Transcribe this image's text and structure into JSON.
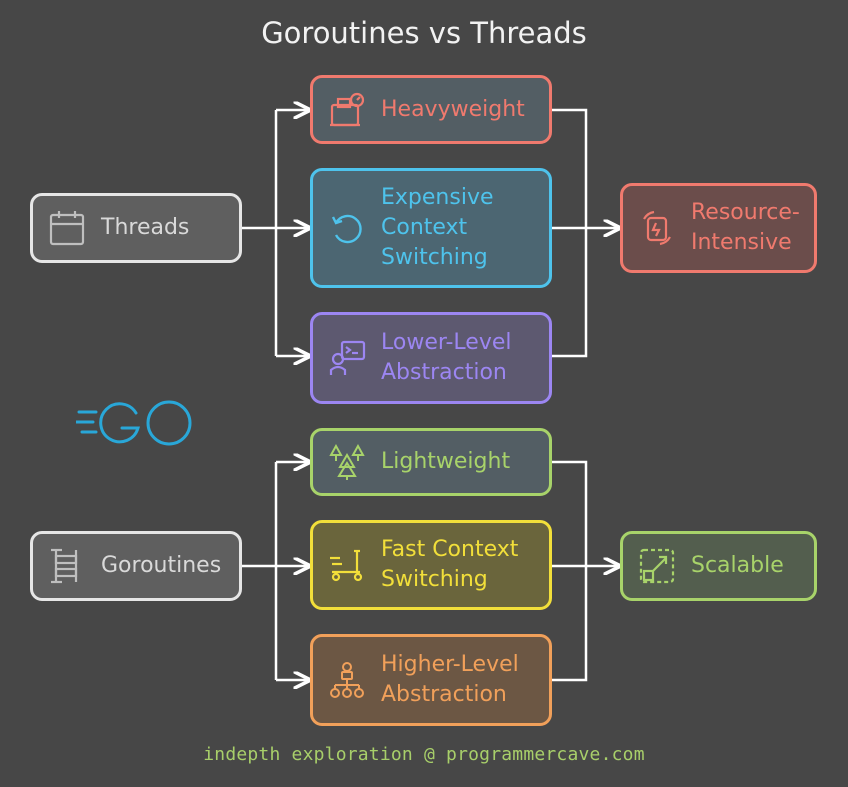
{
  "title": "Goroutines vs Threads",
  "footer": "indepth exploration @ programmercave.com",
  "threads": {
    "source": "Threads",
    "traits": {
      "heavy": "Heavyweight",
      "context_1": "Expensive",
      "context_2": "Context",
      "context_3": "Switching",
      "abstraction_1": "Lower-Level",
      "abstraction_2": "Abstraction"
    },
    "outcome_1": "Resource-",
    "outcome_2": "Intensive"
  },
  "goroutines": {
    "source": "Goroutines",
    "traits": {
      "light": "Lightweight",
      "context_1": "Fast Context",
      "context_2": "Switching",
      "abstraction_1": "Higher-Level",
      "abstraction_2": "Abstraction"
    },
    "outcome": "Scalable"
  },
  "colors": {
    "background": "#474747",
    "red": "#f07a6e",
    "blue": "#4ec3ec",
    "purple": "#9c86f2",
    "green": "#a8d36a",
    "yellow": "#f2df3a",
    "orange": "#f1a05a",
    "gray": "#e6e6e6",
    "go_logo": "#29a7d8"
  },
  "icons": {
    "threads": "calendar-icon",
    "heavyweight": "weighing-scale-icon",
    "expensive_context": "refresh-icon",
    "lower_level": "developer-terminal-icon",
    "resource_intensive": "resource-recycle-icon",
    "goroutines": "scaffold-icon",
    "lightweight": "trees-icon",
    "fast_context": "scooter-icon",
    "higher_level": "hierarchy-icon",
    "scalable": "expand-icon",
    "logo": "go-logo"
  }
}
